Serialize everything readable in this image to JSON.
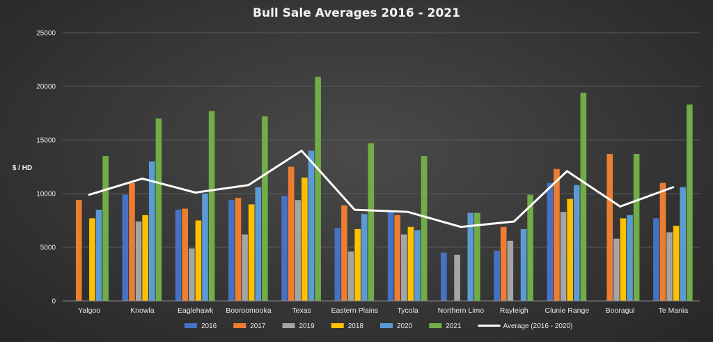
{
  "chart_data": {
    "type": "bar",
    "title": "Bull Sale Averages 2016 - 2021",
    "ylabel": "$ / HD",
    "xlabel": "",
    "ylim": [
      0,
      25000
    ],
    "yticks": [
      0,
      5000,
      10000,
      15000,
      20000,
      25000
    ],
    "grid": true,
    "legend_position": "bottom",
    "categories": [
      "Yalgoo",
      "Knowla",
      "Eaglehawk",
      "Booroomooka",
      "Texas",
      "Eastern Plains",
      "Tycola",
      "Northern Limo",
      "Rayleigh",
      "Clunie Range",
      "Booragul",
      "Te Mania"
    ],
    "series": [
      {
        "name": "2016",
        "color": "#4472C4",
        "values": [
          null,
          9900,
          8500,
          9400,
          9800,
          6800,
          8400,
          4500,
          4700,
          11000,
          null,
          7700
        ]
      },
      {
        "name": "2017",
        "color": "#ED7D31",
        "values": [
          9400,
          11000,
          8600,
          9600,
          12500,
          8900,
          8000,
          null,
          6900,
          12300,
          13700,
          11000
        ]
      },
      {
        "name": "2019",
        "color": "#A5A5A5",
        "values": [
          null,
          7400,
          4900,
          6200,
          9400,
          4600,
          6200,
          4300,
          5600,
          8300,
          5800,
          6400
        ]
      },
      {
        "name": "2018",
        "color": "#FFC000",
        "values": [
          7700,
          8000,
          7500,
          9000,
          11500,
          6700,
          6900,
          null,
          null,
          9500,
          7700,
          7000
        ]
      },
      {
        "name": "2020",
        "color": "#5B9BD5",
        "values": [
          8500,
          13000,
          10000,
          10600,
          14000,
          8100,
          6600,
          8200,
          6700,
          10800,
          8000,
          10600
        ]
      },
      {
        "name": "2021",
        "color": "#70AD47",
        "values": [
          13500,
          17000,
          17700,
          17200,
          20900,
          14700,
          13500,
          8200,
          9900,
          19400,
          13700,
          18300
        ]
      }
    ],
    "line": {
      "name": "Average (2016 - 2020)",
      "color": "#FFFFFF",
      "values": [
        9900,
        11400,
        10100,
        10800,
        14000,
        8500,
        8300,
        6900,
        7400,
        12100,
        8800,
        10600
      ]
    }
  }
}
